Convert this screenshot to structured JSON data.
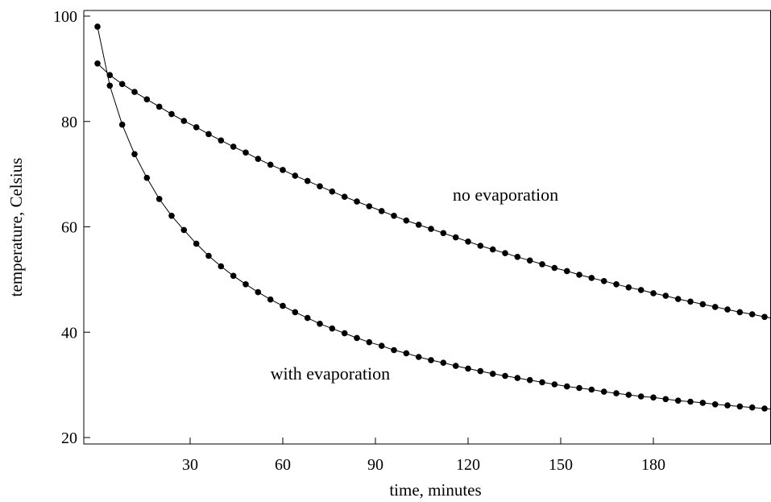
{
  "chart_data": {
    "type": "scatter",
    "title": "",
    "xlabel": "time, minutes",
    "ylabel": "temperature, Celsius",
    "xlim": [
      0,
      222
    ],
    "ylim": [
      20,
      100
    ],
    "xticks": [
      30,
      60,
      90,
      120,
      150,
      180
    ],
    "yticks": [
      20,
      40,
      60,
      80,
      100
    ],
    "grid": false,
    "x": [
      0,
      4,
      8,
      12,
      16,
      20,
      24,
      28,
      32,
      36,
      40,
      44,
      48,
      52,
      56,
      60,
      64,
      68,
      72,
      76,
      80,
      84,
      88,
      92,
      96,
      100,
      104,
      108,
      112,
      116,
      120,
      124,
      128,
      132,
      136,
      140,
      144,
      148,
      152,
      156,
      160,
      164,
      168,
      172,
      176,
      180,
      184,
      188,
      192,
      196,
      200,
      204,
      208,
      212,
      216,
      220
    ],
    "series": [
      {
        "label": "no evaporation",
        "values": [
          91.0,
          88.8,
          87.1,
          85.6,
          84.2,
          82.8,
          81.4,
          80.1,
          78.9,
          77.6,
          76.4,
          75.2,
          74.1,
          72.9,
          71.8,
          70.8,
          69.7,
          68.7,
          67.7,
          66.7,
          65.7,
          64.8,
          63.9,
          63.0,
          62.1,
          61.2,
          60.4,
          59.6,
          58.8,
          58.0,
          57.2,
          56.4,
          55.7,
          55.0,
          54.3,
          53.6,
          52.9,
          52.2,
          51.6,
          50.9,
          50.3,
          49.7,
          49.1,
          48.5,
          48.0,
          47.4,
          46.9,
          46.3,
          45.8,
          45.3,
          44.8,
          44.3,
          43.8,
          43.4,
          42.9,
          42.5
        ],
        "label_at": [
          115,
          65
        ]
      },
      {
        "label": "with evaporation",
        "values": [
          98.0,
          86.8,
          79.4,
          73.8,
          69.3,
          65.3,
          62.1,
          59.4,
          56.8,
          54.5,
          52.5,
          50.7,
          49.1,
          47.6,
          46.2,
          45.0,
          43.8,
          42.7,
          41.6,
          40.7,
          39.8,
          38.9,
          38.1,
          37.4,
          36.6,
          36.0,
          35.3,
          34.7,
          34.2,
          33.6,
          33.1,
          32.6,
          32.1,
          31.7,
          31.3,
          30.9,
          30.5,
          30.1,
          29.7,
          29.4,
          29.1,
          28.7,
          28.4,
          28.1,
          27.8,
          27.6,
          27.3,
          27.0,
          26.8,
          26.6,
          26.3,
          26.1,
          25.9,
          25.7,
          25.5,
          25.3
        ],
        "label_at": [
          56,
          31
        ]
      }
    ]
  }
}
